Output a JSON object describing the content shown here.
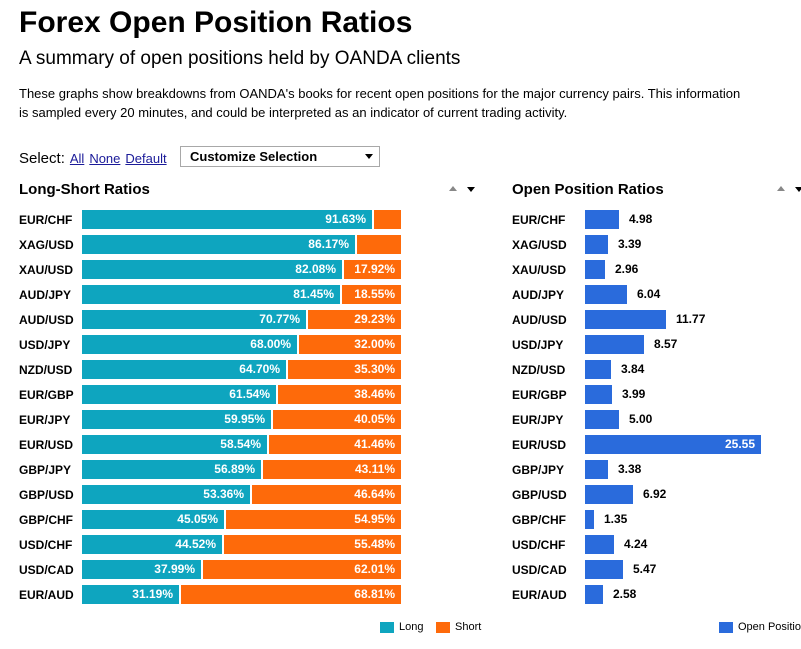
{
  "header": {
    "title": "Forex Open Position Ratios",
    "subtitle": "A summary of open positions held by OANDA clients",
    "description_line1": "These graphs show breakdowns from OANDA's books for recent open positions for the major currency pairs. This information",
    "description_line2": "is sampled every 20 minutes, and could be interpreted as an indicator of current trading activity."
  },
  "select": {
    "label": "Select:",
    "all": "All",
    "none": "None",
    "default": "Default",
    "dropdown_value": "Customize Selection"
  },
  "colors": {
    "long": "#0ea5bf",
    "short": "#fe6a0a",
    "open": "#2a6bdc"
  },
  "chart_data": [
    {
      "type": "bar",
      "stacked": true,
      "orientation": "horizontal",
      "title": "Long-Short Ratios",
      "categories": [
        "EUR/CHF",
        "XAG/USD",
        "XAU/USD",
        "AUD/JPY",
        "AUD/USD",
        "USD/JPY",
        "NZD/USD",
        "EUR/GBP",
        "EUR/JPY",
        "EUR/USD",
        "GBP/JPY",
        "GBP/USD",
        "GBP/CHF",
        "USD/CHF",
        "USD/CAD",
        "EUR/AUD"
      ],
      "series": [
        {
          "name": "Long",
          "values": [
            91.63,
            86.17,
            82.08,
            81.45,
            70.77,
            68.0,
            64.7,
            61.54,
            59.95,
            58.54,
            56.89,
            53.36,
            45.05,
            44.52,
            37.99,
            31.19
          ]
        },
        {
          "name": "Short",
          "values": [
            8.37,
            13.83,
            17.92,
            18.55,
            29.23,
            32.0,
            35.3,
            38.46,
            40.05,
            41.46,
            43.11,
            46.64,
            54.95,
            55.48,
            62.01,
            68.81
          ]
        }
      ],
      "labels_long": [
        "91.63%",
        "86.17%",
        "82.08%",
        "81.45%",
        "70.77%",
        "68.00%",
        "64.70%",
        "61.54%",
        "59.95%",
        "58.54%",
        "56.89%",
        "53.36%",
        "45.05%",
        "44.52%",
        "37.99%",
        "31.19%"
      ],
      "labels_short": [
        "",
        "",
        "17.92%",
        "18.55%",
        "29.23%",
        "32.00%",
        "35.30%",
        "38.46%",
        "40.05%",
        "41.46%",
        "43.11%",
        "46.64%",
        "54.95%",
        "55.48%",
        "62.01%",
        "68.81%"
      ],
      "xlim": [
        0,
        100
      ],
      "legend": "bottom-right"
    },
    {
      "type": "bar",
      "orientation": "horizontal",
      "title": "Open Position Ratios",
      "categories": [
        "EUR/CHF",
        "XAG/USD",
        "XAU/USD",
        "AUD/JPY",
        "AUD/USD",
        "USD/JPY",
        "NZD/USD",
        "EUR/GBP",
        "EUR/JPY",
        "EUR/USD",
        "GBP/JPY",
        "GBP/USD",
        "GBP/CHF",
        "USD/CHF",
        "USD/CAD",
        "EUR/AUD"
      ],
      "series": [
        {
          "name": "Open Position",
          "values": [
            4.98,
            3.39,
            2.96,
            6.04,
            11.77,
            8.57,
            3.84,
            3.99,
            5.0,
            25.55,
            3.38,
            6.92,
            1.35,
            4.24,
            5.47,
            2.58
          ]
        }
      ],
      "value_labels": [
        "4.98",
        "3.39",
        "2.96",
        "6.04",
        "11.77",
        "8.57",
        "3.84",
        "3.99",
        "5.00",
        "25.55",
        "3.38",
        "6.92",
        "1.35",
        "4.24",
        "5.47",
        "2.58"
      ],
      "legend": "bottom-right"
    }
  ],
  "legend": {
    "long": "Long",
    "short": "Short",
    "open": "Open Position"
  }
}
